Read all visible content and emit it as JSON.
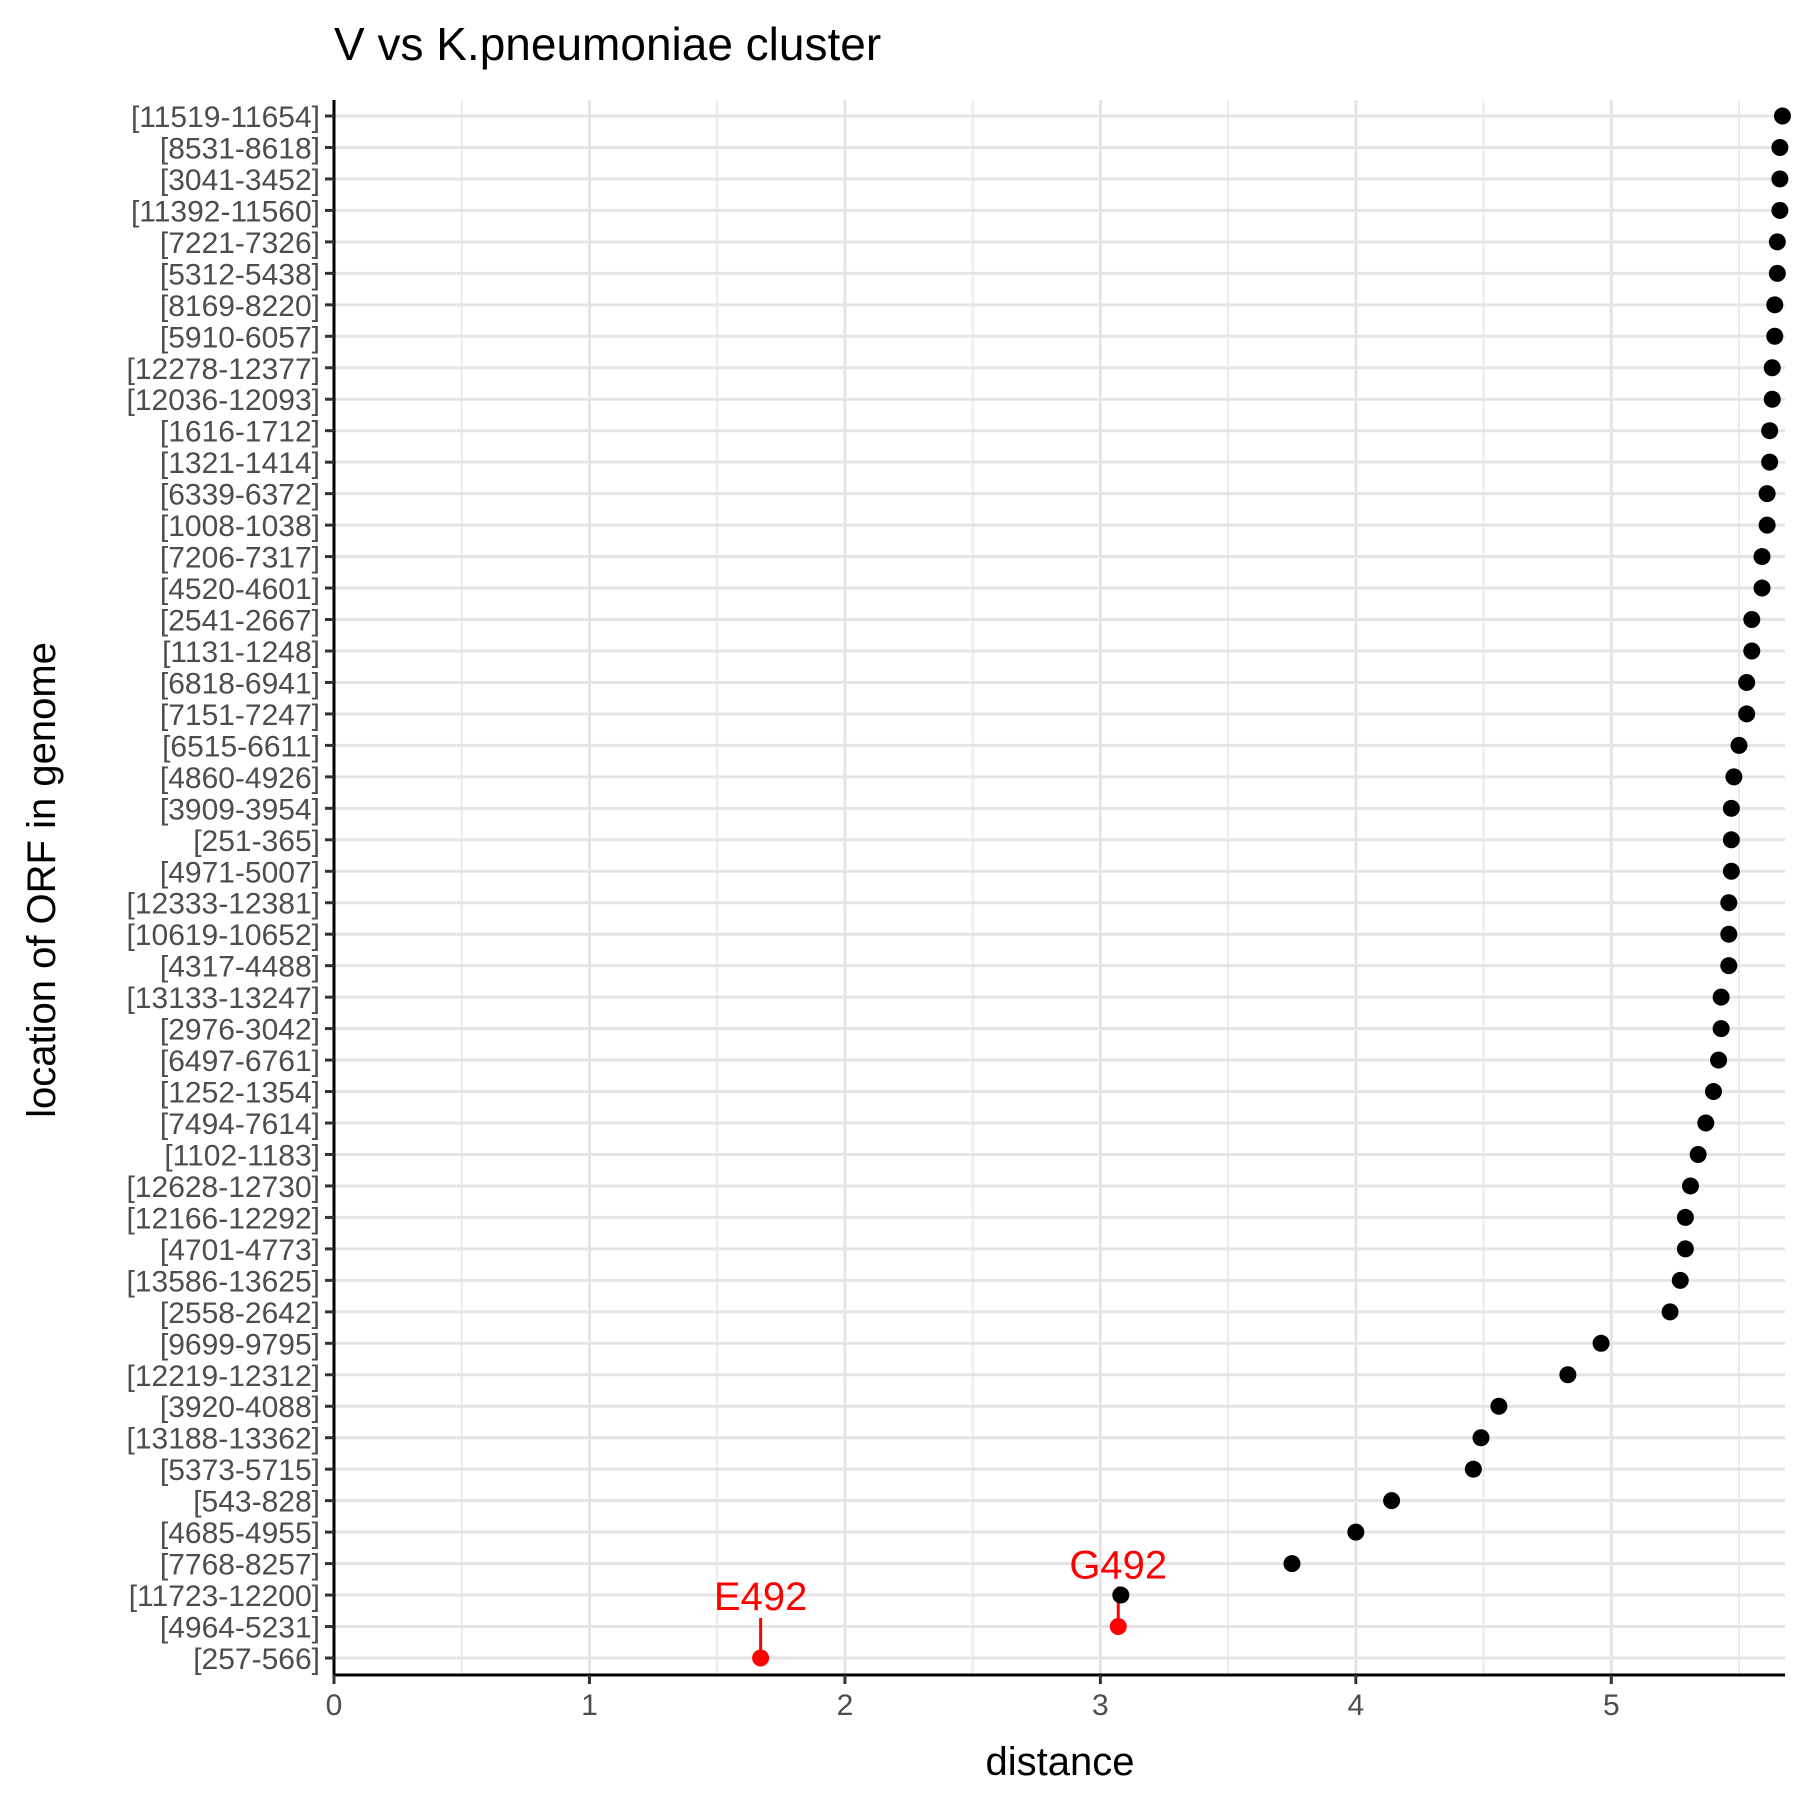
{
  "chart_data": {
    "type": "scatter",
    "title": "V vs K.pneumoniae cluster",
    "xlabel": "distance",
    "ylabel": "location of ORF in genome",
    "xlim": [
      0,
      5.68
    ],
    "x_ticks": [
      "0",
      "1",
      "2",
      "3",
      "4",
      "5"
    ],
    "grid": true,
    "point_color": "#000000",
    "highlight_color": "#ff0000",
    "categories": [
      "[11519-11654]",
      "[8531-8618]",
      "[3041-3452]",
      "[11392-11560]",
      "[7221-7326]",
      "[5312-5438]",
      "[8169-8220]",
      "[5910-6057]",
      "[12278-12377]",
      "[12036-12093]",
      "[1616-1712]",
      "[1321-1414]",
      "[6339-6372]",
      "[1008-1038]",
      "[7206-7317]",
      "[4520-4601]",
      "[2541-2667]",
      "[1131-1248]",
      "[6818-6941]",
      "[7151-7247]",
      "[6515-6611]",
      "[4860-4926]",
      "[3909-3954]",
      "[251-365]",
      "[4971-5007]",
      "[12333-12381]",
      "[10619-10652]",
      "[4317-4488]",
      "[13133-13247]",
      "[2976-3042]",
      "[6497-6761]",
      "[1252-1354]",
      "[7494-7614]",
      "[1102-1183]",
      "[12628-12730]",
      "[12166-12292]",
      "[4701-4773]",
      "[13586-13625]",
      "[2558-2642]",
      "[9699-9795]",
      "[12219-12312]",
      "[3920-4088]",
      "[13188-13362]",
      "[5373-5715]",
      "[543-828]",
      "[4685-4955]",
      "[7768-8257]",
      "[11723-12200]",
      "[4964-5231]",
      "[257-566]"
    ],
    "values": [
      5.67,
      5.66,
      5.66,
      5.66,
      5.65,
      5.65,
      5.64,
      5.64,
      5.63,
      5.63,
      5.62,
      5.62,
      5.61,
      5.61,
      5.59,
      5.59,
      5.55,
      5.55,
      5.53,
      5.53,
      5.5,
      5.48,
      5.47,
      5.47,
      5.47,
      5.46,
      5.46,
      5.46,
      5.43,
      5.43,
      5.42,
      5.4,
      5.37,
      5.34,
      5.31,
      5.29,
      5.29,
      5.27,
      5.23,
      4.96,
      4.83,
      4.56,
      4.49,
      4.46,
      4.14,
      4.0,
      3.75,
      3.08,
      3.07,
      1.67
    ],
    "annotations": [
      {
        "label": "G492",
        "category": "[4964-5231]",
        "x": 3.07
      },
      {
        "label": "E492",
        "category": "[257-566]",
        "x": 1.67
      }
    ]
  }
}
